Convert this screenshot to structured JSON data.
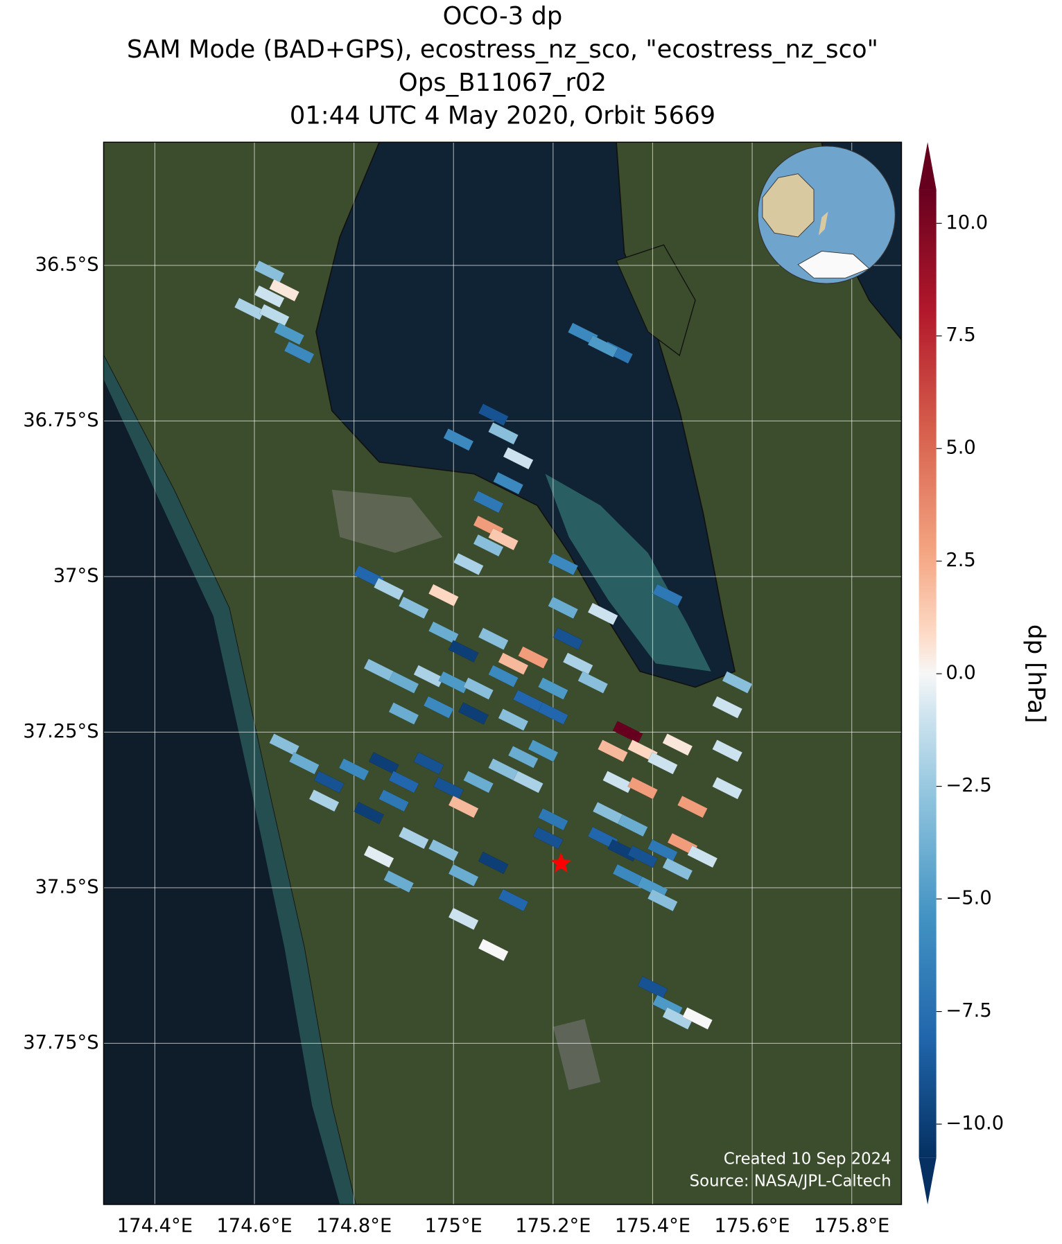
{
  "chart_data": {
    "type": "map",
    "title": [
      "OCO-3 dp",
      "SAM Mode (BAD+GPS), ecostress_nz_sco, \"ecostress_nz_sco\"",
      "Ops_B11067_r02",
      "01:44 UTC 4 May 2020, Orbit 5669"
    ],
    "xlim": [
      174.297,
      175.9
    ],
    "ylim": [
      -38.009,
      -36.302
    ],
    "xticks": [
      {
        "value": 174.4,
        "label": "174.4°E"
      },
      {
        "value": 174.6,
        "label": "174.6°E"
      },
      {
        "value": 174.8,
        "label": "174.8°E"
      },
      {
        "value": 175.0,
        "label": "175°E"
      },
      {
        "value": 175.2,
        "label": "175.2°E"
      },
      {
        "value": 175.4,
        "label": "175.4°E"
      },
      {
        "value": 175.6,
        "label": "175.6°E"
      },
      {
        "value": 175.8,
        "label": "175.8°E"
      }
    ],
    "yticks": [
      {
        "value": -36.5,
        "label": "36.5°S"
      },
      {
        "value": -36.75,
        "label": "36.75°S"
      },
      {
        "value": -37.0,
        "label": "37°S"
      },
      {
        "value": -37.25,
        "label": "37.25°S"
      },
      {
        "value": -37.5,
        "label": "37.5°S"
      },
      {
        "value": -37.75,
        "label": "37.75°S"
      }
    ],
    "grid": true,
    "colorbar": {
      "label": "dp [hPa]",
      "clim": [
        -10.75,
        10.75
      ],
      "colormap": "RdBu_r",
      "ticks": [
        {
          "value": -10,
          "label": "−10.0"
        },
        {
          "value": -7.5,
          "label": "−7.5"
        },
        {
          "value": -5,
          "label": "−5.0"
        },
        {
          "value": -2.5,
          "label": "−2.5"
        },
        {
          "value": 0,
          "label": "0.0"
        },
        {
          "value": 2.5,
          "label": "2.5"
        },
        {
          "value": 5,
          "label": "5.0"
        },
        {
          "value": 7.5,
          "label": "7.5"
        },
        {
          "value": 10,
          "label": "10.0"
        }
      ]
    },
    "target": {
      "lon": 175.216,
      "lat": -37.461,
      "color": "#ff0000"
    },
    "footprints": {
      "lon": [
        174.63,
        174.59,
        174.63,
        174.64,
        174.67,
        174.69,
        174.66,
        175.26,
        175.33,
        175.3,
        175.08,
        175.01,
        175.1,
        175.13,
        175.11,
        175.07,
        175.07,
        175.1,
        175.22,
        174.83,
        174.87,
        174.92,
        174.98,
        175.03,
        175.07,
        174.98,
        175.02,
        175.08,
        175.12,
        175.16,
        174.85,
        174.9,
        174.95,
        175.0,
        175.05,
        175.1,
        175.15,
        175.2,
        175.22,
        175.23,
        175.25,
        175.28,
        175.3,
        174.9,
        174.97,
        175.04,
        175.12,
        175.2,
        174.66,
        174.7,
        174.75,
        174.8,
        174.86,
        174.9,
        174.95,
        174.74,
        174.83,
        174.88,
        174.99,
        175.02,
        175.05,
        175.1,
        175.15,
        175.18,
        175.35,
        175.32,
        175.38,
        175.45,
        175.33,
        175.38,
        175.42,
        175.48,
        175.31,
        175.36,
        175.3,
        175.34,
        175.38,
        175.42,
        175.46,
        175.5,
        175.45,
        175.35,
        175.4,
        175.55,
        175.55,
        174.92,
        174.98,
        175.02,
        175.08,
        175.12,
        175.19,
        174.85,
        174.89,
        175.02,
        175.08,
        175.4,
        175.43,
        175.45,
        175.49,
        175.42,
        175.57,
        175.55,
        175.43,
        175.2,
        175.14
      ],
      "lat": [
        -36.51,
        -36.57,
        -36.55,
        -36.58,
        -36.61,
        -36.64,
        -36.54,
        -36.61,
        -36.64,
        -36.63,
        -36.74,
        -36.78,
        -36.77,
        -36.81,
        -36.85,
        -36.88,
        -36.92,
        -36.94,
        -36.98,
        -37.0,
        -37.02,
        -37.05,
        -37.03,
        -36.98,
        -36.95,
        -37.09,
        -37.12,
        -37.1,
        -37.14,
        -37.13,
        -37.15,
        -37.17,
        -37.16,
        -37.17,
        -37.18,
        -37.16,
        -37.2,
        -37.18,
        -37.05,
        -37.1,
        -37.14,
        -37.17,
        -37.06,
        -37.22,
        -37.21,
        -37.22,
        -37.23,
        -37.22,
        -37.27,
        -37.3,
        -37.33,
        -37.31,
        -37.3,
        -37.33,
        -37.3,
        -37.36,
        -37.38,
        -37.36,
        -37.34,
        -37.37,
        -37.33,
        -37.31,
        -37.33,
        -37.28,
        -37.25,
        -37.28,
        -37.28,
        -37.27,
        -37.33,
        -37.34,
        -37.3,
        -37.37,
        -37.38,
        -37.4,
        -37.42,
        -37.44,
        -37.45,
        -37.44,
        -37.43,
        -37.45,
        -37.47,
        -37.48,
        -37.5,
        -37.28,
        -37.34,
        -37.42,
        -37.44,
        -37.48,
        -37.46,
        -37.52,
        -37.42,
        -37.45,
        -37.49,
        -37.55,
        -37.6,
        -37.66,
        -37.69,
        -37.71,
        -37.71,
        -37.52,
        -37.17,
        -37.21,
        -37.03,
        -37.39,
        -37.29
      ],
      "dp": [
        -3,
        -2,
        -1,
        -1.5,
        -5,
        -6,
        0.5,
        -6,
        -7,
        -5,
        -9,
        -6,
        -3,
        -1,
        -6,
        -7,
        3,
        1.5,
        -6,
        -8,
        -2,
        -3,
        1,
        -2,
        -3,
        -4,
        -10,
        -3,
        2,
        3,
        -3,
        -4,
        -2,
        -5,
        -3,
        -6,
        -8,
        -5,
        -4,
        -9,
        -2,
        -3,
        -1,
        -4,
        -6,
        -10,
        -3,
        -8,
        -3,
        -4,
        -9,
        -6,
        -10,
        -8,
        -9,
        -2,
        -10,
        -7,
        -9,
        2,
        -4,
        -3,
        -2,
        -5,
        11,
        2,
        1,
        0.5,
        -1,
        3,
        -1,
        3,
        -3,
        -4,
        -8,
        -10,
        -9,
        -7,
        3,
        -1,
        -3,
        -6,
        -5,
        -1,
        -1,
        -2,
        -3,
        -4,
        -10,
        -8,
        -9,
        -0.5,
        -4,
        -1,
        0,
        -9,
        -5,
        -2,
        0,
        -3,
        -3,
        -1,
        -7,
        -7,
        -4
      ]
    },
    "credits": [
      "Created 10 Sep 2024",
      "Source: NASA/JPL-Caltech"
    ]
  }
}
